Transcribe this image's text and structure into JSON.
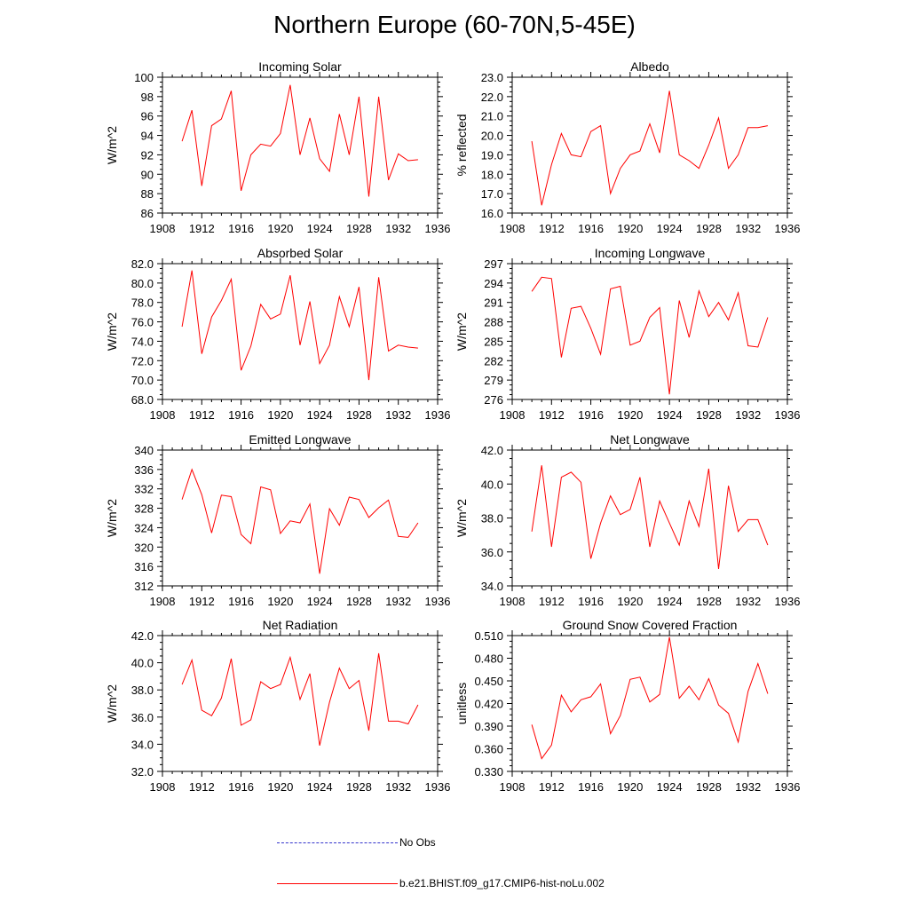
{
  "title": "Northern Europe (60-70N,5-45E)",
  "legend": [
    {
      "label": "No Obs",
      "color": "#3333cc",
      "style": "dashed"
    },
    {
      "label": "b.e21.BHIST.f09_g17.CMIP6-hist-noLu.002",
      "color": "#ff0000",
      "style": "solid"
    }
  ],
  "chart_data": [
    {
      "type": "line",
      "title": "Incoming Solar",
      "ylabel": "W/m^2",
      "xlim": [
        1908,
        1936
      ],
      "ylim": [
        86,
        100
      ],
      "xticks": [
        "1908",
        "1912",
        "1916",
        "1920",
        "1924",
        "1928",
        "1932",
        "1936"
      ],
      "yticks": [
        "86",
        "88",
        "90",
        "92",
        "94",
        "96",
        "98",
        "100"
      ],
      "series": [
        {
          "color": "#ff0000",
          "x": [
            1910,
            1911,
            1912,
            1913,
            1914,
            1915,
            1916,
            1917,
            1918,
            1919,
            1920,
            1921,
            1922,
            1923,
            1924,
            1925,
            1926,
            1927,
            1928,
            1929,
            1930,
            1931,
            1932,
            1933,
            1934
          ],
          "values": [
            93.4,
            96.6,
            88.8,
            95.0,
            95.7,
            98.6,
            88.3,
            92.0,
            93.1,
            92.9,
            94.2,
            99.2,
            92.0,
            95.8,
            91.6,
            90.3,
            96.2,
            92.0,
            98.0,
            87.7,
            98.0,
            89.4,
            92.1,
            91.4,
            91.5
          ]
        }
      ]
    },
    {
      "type": "line",
      "title": "Albedo",
      "ylabel": "% reflected",
      "xlim": [
        1908,
        1936
      ],
      "ylim": [
        16.0,
        23.0
      ],
      "xticks": [
        "1908",
        "1912",
        "1916",
        "1920",
        "1924",
        "1928",
        "1932",
        "1936"
      ],
      "yticks": [
        "16.0",
        "17.0",
        "18.0",
        "19.0",
        "20.0",
        "21.0",
        "22.0",
        "23.0"
      ],
      "series": [
        {
          "color": "#ff0000",
          "x": [
            1910,
            1911,
            1912,
            1913,
            1914,
            1915,
            1916,
            1917,
            1918,
            1919,
            1920,
            1921,
            1922,
            1923,
            1924,
            1925,
            1926,
            1927,
            1928,
            1929,
            1930,
            1931,
            1932,
            1933,
            1934
          ],
          "values": [
            19.7,
            16.4,
            18.5,
            20.1,
            19.0,
            18.9,
            20.2,
            20.5,
            17.0,
            18.3,
            19.0,
            19.2,
            20.6,
            19.1,
            22.3,
            19.0,
            18.7,
            18.3,
            19.5,
            20.9,
            18.3,
            19.0,
            20.4,
            20.4,
            20.5
          ]
        }
      ]
    },
    {
      "type": "line",
      "title": "Absorbed Solar",
      "ylabel": "W/m^2",
      "xlim": [
        1908,
        1936
      ],
      "ylim": [
        68.0,
        82.0
      ],
      "xticks": [
        "1908",
        "1912",
        "1916",
        "1920",
        "1924",
        "1928",
        "1932",
        "1936"
      ],
      "yticks": [
        "68.0",
        "70.0",
        "72.0",
        "74.0",
        "76.0",
        "78.0",
        "80.0",
        "82.0"
      ],
      "series": [
        {
          "color": "#ff0000",
          "x": [
            1910,
            1911,
            1912,
            1913,
            1914,
            1915,
            1916,
            1917,
            1918,
            1919,
            1920,
            1921,
            1922,
            1923,
            1924,
            1925,
            1926,
            1927,
            1928,
            1929,
            1930,
            1931,
            1932,
            1933,
            1934
          ],
          "values": [
            75.5,
            81.3,
            72.7,
            76.5,
            78.2,
            80.4,
            71.0,
            73.5,
            77.8,
            76.3,
            76.8,
            80.8,
            73.6,
            78.1,
            71.7,
            73.6,
            78.6,
            75.5,
            79.6,
            70.0,
            80.6,
            73.0,
            73.6,
            73.4,
            73.3
          ]
        }
      ]
    },
    {
      "type": "line",
      "title": "Incoming Longwave",
      "ylabel": "W/m^2",
      "xlim": [
        1908,
        1936
      ],
      "ylim": [
        276,
        297
      ],
      "xticks": [
        "1908",
        "1912",
        "1916",
        "1920",
        "1924",
        "1928",
        "1932",
        "1936"
      ],
      "yticks": [
        "276",
        "279",
        "282",
        "285",
        "288",
        "291",
        "294",
        "297"
      ],
      "series": [
        {
          "color": "#ff0000",
          "x": [
            1910,
            1911,
            1912,
            1913,
            1914,
            1915,
            1916,
            1917,
            1918,
            1919,
            1920,
            1921,
            1922,
            1923,
            1924,
            1925,
            1926,
            1927,
            1928,
            1929,
            1930,
            1931,
            1932,
            1933,
            1934
          ],
          "values": [
            292.7,
            294.9,
            294.7,
            282.5,
            290.1,
            290.4,
            287.0,
            283.0,
            293.1,
            293.5,
            284.4,
            285.0,
            288.7,
            290.2,
            276.8,
            291.3,
            285.6,
            292.8,
            288.8,
            291.0,
            288.3,
            292.5,
            284.3,
            284.1,
            288.7
          ]
        }
      ]
    },
    {
      "type": "line",
      "title": "Emitted Longwave",
      "ylabel": "W/m^2",
      "xlim": [
        1908,
        1936
      ],
      "ylim": [
        312,
        340
      ],
      "xticks": [
        "1908",
        "1912",
        "1916",
        "1920",
        "1924",
        "1928",
        "1932",
        "1936"
      ],
      "yticks": [
        "312",
        "316",
        "320",
        "324",
        "328",
        "332",
        "336",
        "340"
      ],
      "series": [
        {
          "color": "#ff0000",
          "x": [
            1910,
            1911,
            1912,
            1913,
            1914,
            1915,
            1916,
            1917,
            1918,
            1919,
            1920,
            1921,
            1922,
            1923,
            1924,
            1925,
            1926,
            1927,
            1928,
            1929,
            1930,
            1931,
            1932,
            1933,
            1934
          ],
          "values": [
            329.8,
            336.0,
            330.8,
            322.9,
            330.7,
            330.4,
            322.6,
            320.7,
            332.4,
            331.8,
            322.8,
            325.4,
            325.0,
            328.9,
            314.5,
            327.9,
            324.5,
            330.3,
            329.8,
            326.1,
            328.1,
            329.7,
            322.2,
            322.0,
            325.0
          ]
        }
      ]
    },
    {
      "type": "line",
      "title": "Net Longwave",
      "ylabel": "W/m^2",
      "xlim": [
        1908,
        1936
      ],
      "ylim": [
        34.0,
        42.0
      ],
      "xticks": [
        "1908",
        "1912",
        "1916",
        "1920",
        "1924",
        "1928",
        "1932",
        "1936"
      ],
      "yticks": [
        "34.0",
        "36.0",
        "38.0",
        "40.0",
        "42.0"
      ],
      "series": [
        {
          "color": "#ff0000",
          "x": [
            1910,
            1911,
            1912,
            1913,
            1914,
            1915,
            1916,
            1917,
            1918,
            1919,
            1920,
            1921,
            1922,
            1923,
            1924,
            1925,
            1926,
            1927,
            1928,
            1929,
            1930,
            1931,
            1932,
            1933,
            1934
          ],
          "values": [
            37.2,
            41.1,
            36.3,
            40.4,
            40.7,
            40.1,
            35.6,
            37.7,
            39.3,
            38.2,
            38.5,
            40.4,
            36.3,
            39.0,
            37.7,
            36.4,
            39.0,
            37.5,
            40.9,
            35.0,
            39.9,
            37.2,
            37.9,
            37.9,
            36.4
          ]
        }
      ]
    },
    {
      "type": "line",
      "title": "Net Radiation",
      "ylabel": "W/m^2",
      "xlim": [
        1908,
        1936
      ],
      "ylim": [
        32.0,
        42.0
      ],
      "xticks": [
        "1908",
        "1912",
        "1916",
        "1920",
        "1924",
        "1928",
        "1932",
        "1936"
      ],
      "yticks": [
        "32.0",
        "34.0",
        "36.0",
        "38.0",
        "40.0",
        "42.0"
      ],
      "series": [
        {
          "color": "#ff0000",
          "x": [
            1910,
            1911,
            1912,
            1913,
            1914,
            1915,
            1916,
            1917,
            1918,
            1919,
            1920,
            1921,
            1922,
            1923,
            1924,
            1925,
            1926,
            1927,
            1928,
            1929,
            1930,
            1931,
            1932,
            1933,
            1934
          ],
          "values": [
            38.4,
            40.2,
            36.5,
            36.1,
            37.4,
            40.3,
            35.4,
            35.8,
            38.6,
            38.1,
            38.4,
            40.4,
            37.3,
            39.2,
            33.9,
            37.1,
            39.6,
            38.1,
            38.7,
            35.0,
            40.7,
            35.7,
            35.7,
            35.5,
            36.9
          ]
        }
      ]
    },
    {
      "type": "line",
      "title": "Ground Snow Covered Fraction",
      "ylabel": "unitless",
      "xlim": [
        1908,
        1936
      ],
      "ylim": [
        0.33,
        0.51
      ],
      "xticks": [
        "1908",
        "1912",
        "1916",
        "1920",
        "1924",
        "1928",
        "1932",
        "1936"
      ],
      "yticks": [
        "0.330",
        "0.360",
        "0.390",
        "0.420",
        "0.450",
        "0.480",
        "0.510"
      ],
      "series": [
        {
          "color": "#ff0000",
          "x": [
            1910,
            1911,
            1912,
            1913,
            1914,
            1915,
            1916,
            1917,
            1918,
            1919,
            1920,
            1921,
            1922,
            1923,
            1924,
            1925,
            1926,
            1927,
            1928,
            1929,
            1930,
            1931,
            1932,
            1933,
            1934
          ],
          "values": [
            0.392,
            0.347,
            0.365,
            0.431,
            0.409,
            0.425,
            0.429,
            0.446,
            0.38,
            0.404,
            0.452,
            0.455,
            0.422,
            0.432,
            0.508,
            0.427,
            0.443,
            0.425,
            0.453,
            0.418,
            0.407,
            0.369,
            0.436,
            0.473,
            0.433
          ]
        }
      ]
    }
  ]
}
